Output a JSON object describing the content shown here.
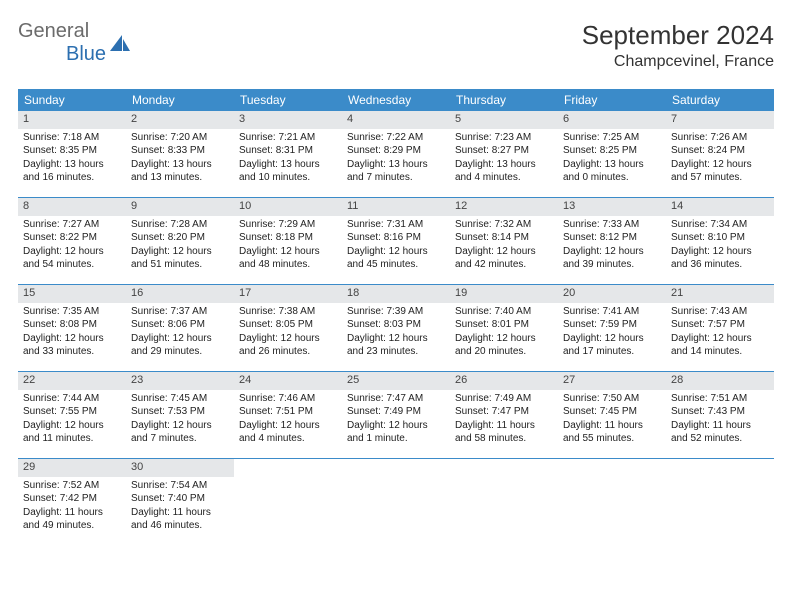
{
  "logo": {
    "text1": "General",
    "text2": "Blue"
  },
  "title": "September 2024",
  "location": "Champcevinel, France",
  "colors": {
    "header_bg": "#3b8bc9",
    "header_text": "#ffffff",
    "daynum_bg": "#e5e7e9",
    "week_border": "#3b8bc9",
    "logo_gray": "#6b6b6b",
    "logo_blue": "#2c6fb0"
  },
  "dayHeaders": [
    "Sunday",
    "Monday",
    "Tuesday",
    "Wednesday",
    "Thursday",
    "Friday",
    "Saturday"
  ],
  "weeks": [
    [
      {
        "n": "1",
        "sr": "Sunrise: 7:18 AM",
        "ss": "Sunset: 8:35 PM",
        "d1": "Daylight: 13 hours",
        "d2": "and 16 minutes."
      },
      {
        "n": "2",
        "sr": "Sunrise: 7:20 AM",
        "ss": "Sunset: 8:33 PM",
        "d1": "Daylight: 13 hours",
        "d2": "and 13 minutes."
      },
      {
        "n": "3",
        "sr": "Sunrise: 7:21 AM",
        "ss": "Sunset: 8:31 PM",
        "d1": "Daylight: 13 hours",
        "d2": "and 10 minutes."
      },
      {
        "n": "4",
        "sr": "Sunrise: 7:22 AM",
        "ss": "Sunset: 8:29 PM",
        "d1": "Daylight: 13 hours",
        "d2": "and 7 minutes."
      },
      {
        "n": "5",
        "sr": "Sunrise: 7:23 AM",
        "ss": "Sunset: 8:27 PM",
        "d1": "Daylight: 13 hours",
        "d2": "and 4 minutes."
      },
      {
        "n": "6",
        "sr": "Sunrise: 7:25 AM",
        "ss": "Sunset: 8:25 PM",
        "d1": "Daylight: 13 hours",
        "d2": "and 0 minutes."
      },
      {
        "n": "7",
        "sr": "Sunrise: 7:26 AM",
        "ss": "Sunset: 8:24 PM",
        "d1": "Daylight: 12 hours",
        "d2": "and 57 minutes."
      }
    ],
    [
      {
        "n": "8",
        "sr": "Sunrise: 7:27 AM",
        "ss": "Sunset: 8:22 PM",
        "d1": "Daylight: 12 hours",
        "d2": "and 54 minutes."
      },
      {
        "n": "9",
        "sr": "Sunrise: 7:28 AM",
        "ss": "Sunset: 8:20 PM",
        "d1": "Daylight: 12 hours",
        "d2": "and 51 minutes."
      },
      {
        "n": "10",
        "sr": "Sunrise: 7:29 AM",
        "ss": "Sunset: 8:18 PM",
        "d1": "Daylight: 12 hours",
        "d2": "and 48 minutes."
      },
      {
        "n": "11",
        "sr": "Sunrise: 7:31 AM",
        "ss": "Sunset: 8:16 PM",
        "d1": "Daylight: 12 hours",
        "d2": "and 45 minutes."
      },
      {
        "n": "12",
        "sr": "Sunrise: 7:32 AM",
        "ss": "Sunset: 8:14 PM",
        "d1": "Daylight: 12 hours",
        "d2": "and 42 minutes."
      },
      {
        "n": "13",
        "sr": "Sunrise: 7:33 AM",
        "ss": "Sunset: 8:12 PM",
        "d1": "Daylight: 12 hours",
        "d2": "and 39 minutes."
      },
      {
        "n": "14",
        "sr": "Sunrise: 7:34 AM",
        "ss": "Sunset: 8:10 PM",
        "d1": "Daylight: 12 hours",
        "d2": "and 36 minutes."
      }
    ],
    [
      {
        "n": "15",
        "sr": "Sunrise: 7:35 AM",
        "ss": "Sunset: 8:08 PM",
        "d1": "Daylight: 12 hours",
        "d2": "and 33 minutes."
      },
      {
        "n": "16",
        "sr": "Sunrise: 7:37 AM",
        "ss": "Sunset: 8:06 PM",
        "d1": "Daylight: 12 hours",
        "d2": "and 29 minutes."
      },
      {
        "n": "17",
        "sr": "Sunrise: 7:38 AM",
        "ss": "Sunset: 8:05 PM",
        "d1": "Daylight: 12 hours",
        "d2": "and 26 minutes."
      },
      {
        "n": "18",
        "sr": "Sunrise: 7:39 AM",
        "ss": "Sunset: 8:03 PM",
        "d1": "Daylight: 12 hours",
        "d2": "and 23 minutes."
      },
      {
        "n": "19",
        "sr": "Sunrise: 7:40 AM",
        "ss": "Sunset: 8:01 PM",
        "d1": "Daylight: 12 hours",
        "d2": "and 20 minutes."
      },
      {
        "n": "20",
        "sr": "Sunrise: 7:41 AM",
        "ss": "Sunset: 7:59 PM",
        "d1": "Daylight: 12 hours",
        "d2": "and 17 minutes."
      },
      {
        "n": "21",
        "sr": "Sunrise: 7:43 AM",
        "ss": "Sunset: 7:57 PM",
        "d1": "Daylight: 12 hours",
        "d2": "and 14 minutes."
      }
    ],
    [
      {
        "n": "22",
        "sr": "Sunrise: 7:44 AM",
        "ss": "Sunset: 7:55 PM",
        "d1": "Daylight: 12 hours",
        "d2": "and 11 minutes."
      },
      {
        "n": "23",
        "sr": "Sunrise: 7:45 AM",
        "ss": "Sunset: 7:53 PM",
        "d1": "Daylight: 12 hours",
        "d2": "and 7 minutes."
      },
      {
        "n": "24",
        "sr": "Sunrise: 7:46 AM",
        "ss": "Sunset: 7:51 PM",
        "d1": "Daylight: 12 hours",
        "d2": "and 4 minutes."
      },
      {
        "n": "25",
        "sr": "Sunrise: 7:47 AM",
        "ss": "Sunset: 7:49 PM",
        "d1": "Daylight: 12 hours",
        "d2": "and 1 minute."
      },
      {
        "n": "26",
        "sr": "Sunrise: 7:49 AM",
        "ss": "Sunset: 7:47 PM",
        "d1": "Daylight: 11 hours",
        "d2": "and 58 minutes."
      },
      {
        "n": "27",
        "sr": "Sunrise: 7:50 AM",
        "ss": "Sunset: 7:45 PM",
        "d1": "Daylight: 11 hours",
        "d2": "and 55 minutes."
      },
      {
        "n": "28",
        "sr": "Sunrise: 7:51 AM",
        "ss": "Sunset: 7:43 PM",
        "d1": "Daylight: 11 hours",
        "d2": "and 52 minutes."
      }
    ],
    [
      {
        "n": "29",
        "sr": "Sunrise: 7:52 AM",
        "ss": "Sunset: 7:42 PM",
        "d1": "Daylight: 11 hours",
        "d2": "and 49 minutes."
      },
      {
        "n": "30",
        "sr": "Sunrise: 7:54 AM",
        "ss": "Sunset: 7:40 PM",
        "d1": "Daylight: 11 hours",
        "d2": "and 46 minutes."
      },
      null,
      null,
      null,
      null,
      null
    ]
  ]
}
